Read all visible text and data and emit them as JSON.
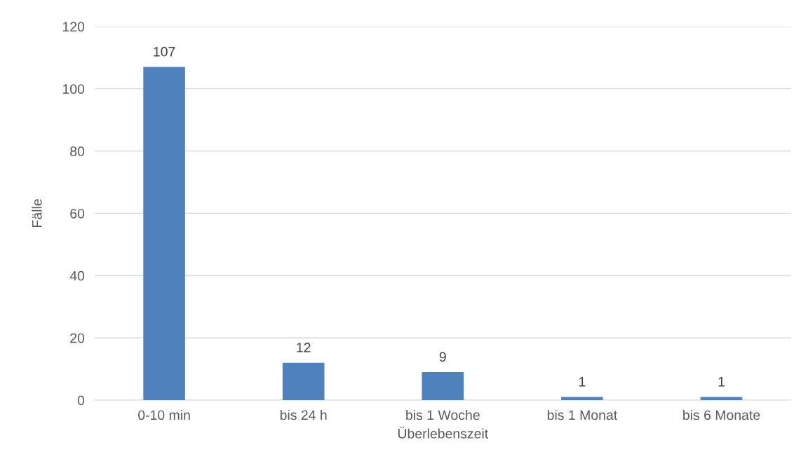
{
  "chart_data": {
    "type": "bar",
    "xlabel": "Überlebenszeit",
    "ylabel": "Fälle",
    "categories": [
      "0-10 min",
      "bis 24 h",
      "bis 1 Woche",
      "bis 1 Monat",
      "bis 6 Monate"
    ],
    "values": [
      107,
      12,
      9,
      1,
      1
    ],
    "color": "#4f81bd",
    "ylim": [
      0,
      120
    ],
    "yticks": [
      0,
      20,
      40,
      60,
      80,
      100,
      120
    ],
    "grid": "y",
    "data_labels": true
  }
}
